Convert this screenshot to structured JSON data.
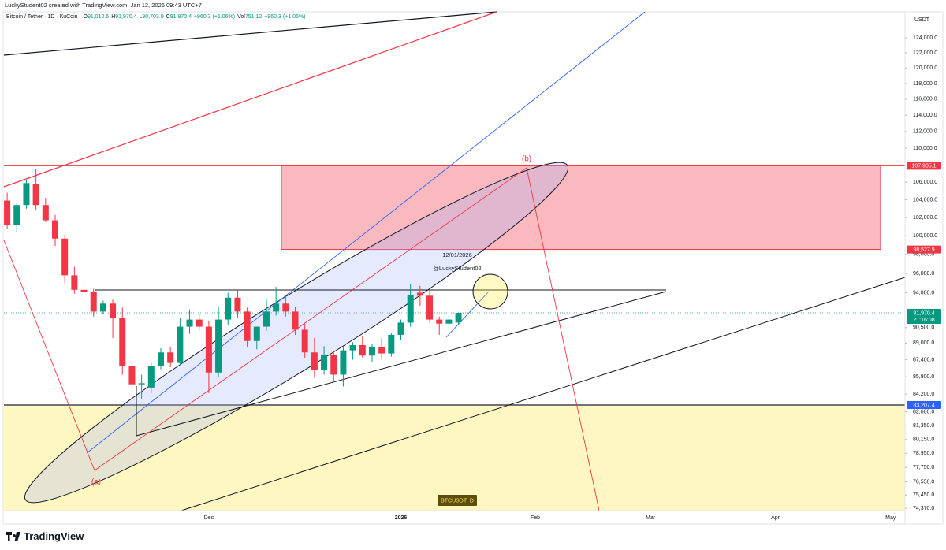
{
  "header": {
    "title": "LuckyStudent02 created with TradingView.com, Jan 12, 2026 09:43 UTC+7"
  },
  "chart_data": {
    "type": "candlestick",
    "symbol": "Bitcoin / Tether · 1D · KuCoin",
    "ohlc_legend": [
      {
        "key": "O",
        "value": "91,010.6"
      },
      {
        "key": "H",
        "value": "91,970.4"
      },
      {
        "key": "L",
        "value": "90,703.9"
      },
      {
        "key": "C",
        "value": "91,970.4"
      }
    ],
    "change": "+960.3 (+1.06%)",
    "volume": {
      "key": "Vol",
      "value": "751.12",
      "change": "+960.3 (+1.06%)"
    },
    "currency": "USDT",
    "categories": [
      null,
      null,
      null,
      null,
      null,
      null,
      null,
      null,
      null,
      null,
      null,
      null,
      null,
      null,
      null,
      null,
      null,
      null,
      null,
      null,
      null,
      "Dec",
      null,
      null,
      null,
      null,
      null,
      null,
      null,
      null,
      null,
      null,
      null,
      null,
      null,
      null,
      null,
      null,
      null,
      null,
      null,
      "2026",
      null,
      null,
      null,
      null,
      null,
      null,
      null,
      null,
      null,
      null,
      null,
      null,
      null,
      "Feb",
      null,
      null,
      null,
      null,
      null,
      null,
      null,
      null,
      null,
      null,
      null,
      "Mar",
      null,
      null,
      null,
      null,
      null,
      null,
      null,
      null,
      null,
      null,
      null,
      null,
      "Apr",
      null,
      null,
      null,
      null,
      null,
      null,
      null,
      null,
      null,
      null,
      null,
      "May",
      null
    ],
    "open": [
      103900,
      101200,
      103400,
      105800,
      103400,
      101700,
      99700,
      95800,
      94300,
      94100,
      92100,
      92900,
      91500,
      86800,
      85100,
      84800,
      86800,
      88100,
      87100,
      90600,
      91300,
      90600,
      86200,
      91300,
      93500,
      92100,
      89200,
      90600,
      92100,
      92900,
      92100,
      90300,
      88100,
      86400,
      87900,
      86000,
      88300,
      88800,
      87800,
      88600,
      88000,
      89800,
      91000,
      94000,
      93700,
      91300,
      90900,
      91010.6,
      null,
      null,
      null,
      null,
      null,
      null,
      null,
      null,
      null,
      null,
      null,
      null,
      null,
      null,
      null,
      null,
      null,
      null,
      null,
      null,
      null,
      null,
      null,
      null,
      null,
      null,
      null,
      null,
      null,
      null,
      null,
      null,
      null,
      null,
      null,
      null,
      null,
      null,
      null,
      null,
      null,
      null,
      null,
      null,
      null,
      null
    ],
    "high": [
      104800,
      103600,
      106200,
      107500,
      104200,
      102300,
      100100,
      96700,
      95300,
      94400,
      93200,
      93300,
      92500,
      87300,
      86000,
      87100,
      88500,
      88600,
      91500,
      92300,
      91900,
      91200,
      92600,
      94000,
      94300,
      92500,
      90600,
      93300,
      94600,
      93800,
      92600,
      90900,
      89500,
      88700,
      88200,
      88700,
      89100,
      89700,
      88900,
      89500,
      90000,
      91300,
      94900,
      94700,
      94300,
      91600,
      91700,
      91970.4,
      null,
      null,
      null,
      null,
      null,
      null,
      null,
      null,
      null,
      null,
      null,
      null,
      null,
      null,
      null,
      null,
      null,
      null,
      null,
      null,
      null,
      null,
      null,
      null,
      null,
      null,
      null,
      null,
      null,
      null,
      null,
      null,
      null,
      null,
      null,
      null,
      null,
      null,
      null,
      null,
      null,
      null,
      null,
      null,
      null,
      null
    ],
    "low": [
      100800,
      100400,
      103000,
      102900,
      101500,
      98900,
      95000,
      93900,
      93100,
      91600,
      91800,
      89500,
      86000,
      83500,
      83800,
      84300,
      86500,
      86700,
      86900,
      89900,
      90200,
      84300,
      85800,
      90800,
      91500,
      88600,
      88400,
      90200,
      91700,
      91600,
      89800,
      87600,
      85700,
      86000,
      85300,
      84900,
      87400,
      87600,
      87200,
      87500,
      87700,
      89300,
      90600,
      92700,
      91000,
      89800,
      90300,
      90703.9,
      null,
      null,
      null,
      null,
      null,
      null,
      null,
      null,
      null,
      null,
      null,
      null,
      null,
      null,
      null,
      null,
      null,
      null,
      null,
      null,
      null,
      null,
      null,
      null,
      null,
      null,
      null,
      null,
      null,
      null,
      null,
      null,
      null,
      null,
      null,
      null,
      null,
      null,
      null,
      null,
      null,
      null,
      null,
      null,
      null,
      null
    ],
    "close": [
      101200,
      103400,
      105900,
      103400,
      101700,
      99700,
      95800,
      94300,
      94100,
      92100,
      92900,
      91500,
      86800,
      85100,
      85200,
      86800,
      88100,
      87100,
      90600,
      91300,
      90600,
      86200,
      91300,
      93500,
      92100,
      89200,
      90600,
      92100,
      92900,
      92100,
      90300,
      88100,
      86400,
      87900,
      86000,
      88300,
      88800,
      87800,
      88600,
      88000,
      89800,
      91000,
      93800,
      93700,
      91300,
      90900,
      91300,
      91970.4,
      null,
      null,
      null,
      null,
      null,
      null,
      null,
      null,
      null,
      null,
      null,
      null,
      null,
      null,
      null,
      null,
      null,
      null,
      null,
      null,
      null,
      null,
      null,
      null,
      null,
      null,
      null,
      null,
      null,
      null,
      null,
      null,
      null,
      null,
      null,
      null,
      null,
      null,
      null,
      null,
      null,
      null,
      null,
      null,
      null,
      null
    ],
    "up_color": "#089981",
    "down_color": "#f23645",
    "log_scale": true,
    "grid": false,
    "ylim": [
      74190,
      127550
    ],
    "yticks": [
      {
        "value": 124000,
        "label": "124,000.0"
      },
      {
        "value": 122000,
        "label": "122,000.0"
      },
      {
        "value": 120000,
        "label": "120,000.0"
      },
      {
        "value": 118000,
        "label": "118,000.0"
      },
      {
        "value": 116000,
        "label": "116,000.0"
      },
      {
        "value": 114000,
        "label": "114,000.0"
      },
      {
        "value": 112000,
        "label": "112,000.0"
      },
      {
        "value": 110000,
        "label": "110,000.0"
      },
      {
        "value": 106000,
        "label": "106,000.0"
      },
      {
        "value": 104000,
        "label": "104,000.0"
      },
      {
        "value": 102000,
        "label": "102,000.0"
      },
      {
        "value": 100000,
        "label": "100,000.0"
      },
      {
        "value": 98000,
        "label": "98,000.0"
      },
      {
        "value": 96000,
        "label": "96,000.0"
      },
      {
        "value": 94000,
        "label": "94,000.0"
      },
      {
        "value": 90500,
        "label": "90,500.0"
      },
      {
        "value": 89000,
        "label": "89,000.0"
      },
      {
        "value": 87400,
        "label": "87,400.0"
      },
      {
        "value": 85800,
        "label": "85,800.0"
      },
      {
        "value": 84200,
        "label": "84,200.0"
      },
      {
        "value": 82600,
        "label": "82,600.0"
      },
      {
        "value": 81350,
        "label": "81,350.0"
      },
      {
        "value": 80150,
        "label": "80,150.0"
      },
      {
        "value": 78950,
        "label": "78,950.0"
      },
      {
        "value": 77750,
        "label": "77,750.0"
      },
      {
        "value": 76550,
        "label": "76,550.0"
      },
      {
        "value": 75450,
        "label": "75,450.0"
      },
      {
        "value": 74370,
        "label": "74,370.0"
      }
    ],
    "price_levels": [
      {
        "value": 107905.1,
        "label": "107,905.1",
        "color": "#f23645"
      },
      {
        "value": 98527.9,
        "label": "98,527.9",
        "color": "#f23645"
      },
      {
        "value": 83207.4,
        "label": "83,207.4",
        "color": "#2962ff"
      }
    ],
    "last_price": {
      "value": 91970.4,
      "label": "91,970.4",
      "countdown": "21:16:08",
      "color": "#089981"
    },
    "annotations": [
      "(a)",
      "(b)",
      "12/01/2026",
      "@LuckyStudent02"
    ],
    "watermark": "BTCUSDT  D"
  },
  "footer": {
    "brand": "TradingView"
  }
}
